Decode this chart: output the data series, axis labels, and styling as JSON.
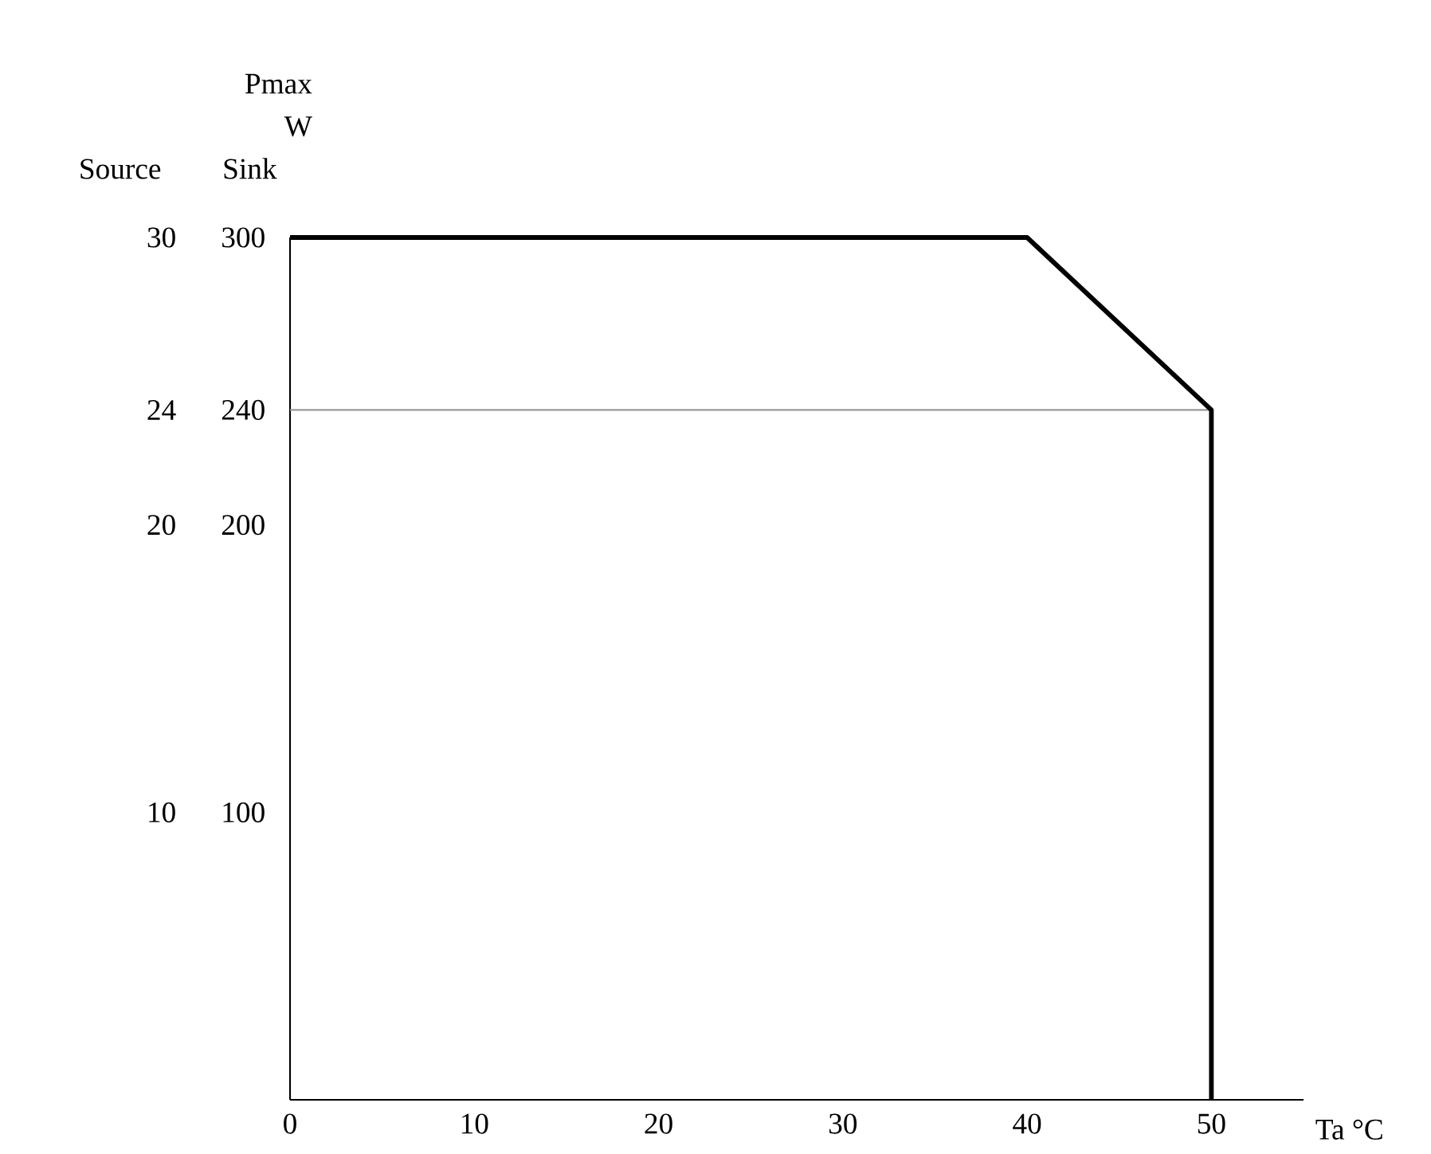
{
  "chart_data": {
    "type": "line",
    "title": "Pmax W",
    "ylabel": "Sink",
    "y2label": "Source",
    "xlabel": "Ta °C",
    "x": [
      0,
      40,
      50,
      50
    ],
    "series": [
      {
        "color": "#000000",
        "values": [
          300,
          300,
          240,
          0
        ]
      }
    ],
    "xlim": [
      0,
      55
    ],
    "xticks": [
      0,
      10,
      20,
      30,
      40,
      50
    ],
    "ylim": [
      0,
      300
    ],
    "yticks": [
      100,
      200,
      240,
      300
    ],
    "y2lim": [
      0,
      30
    ],
    "y2ticks": [
      10,
      20,
      24,
      30
    ],
    "ref_lines": [
      {
        "axis": "y",
        "value": 240,
        "color": "#999999"
      }
    ]
  }
}
